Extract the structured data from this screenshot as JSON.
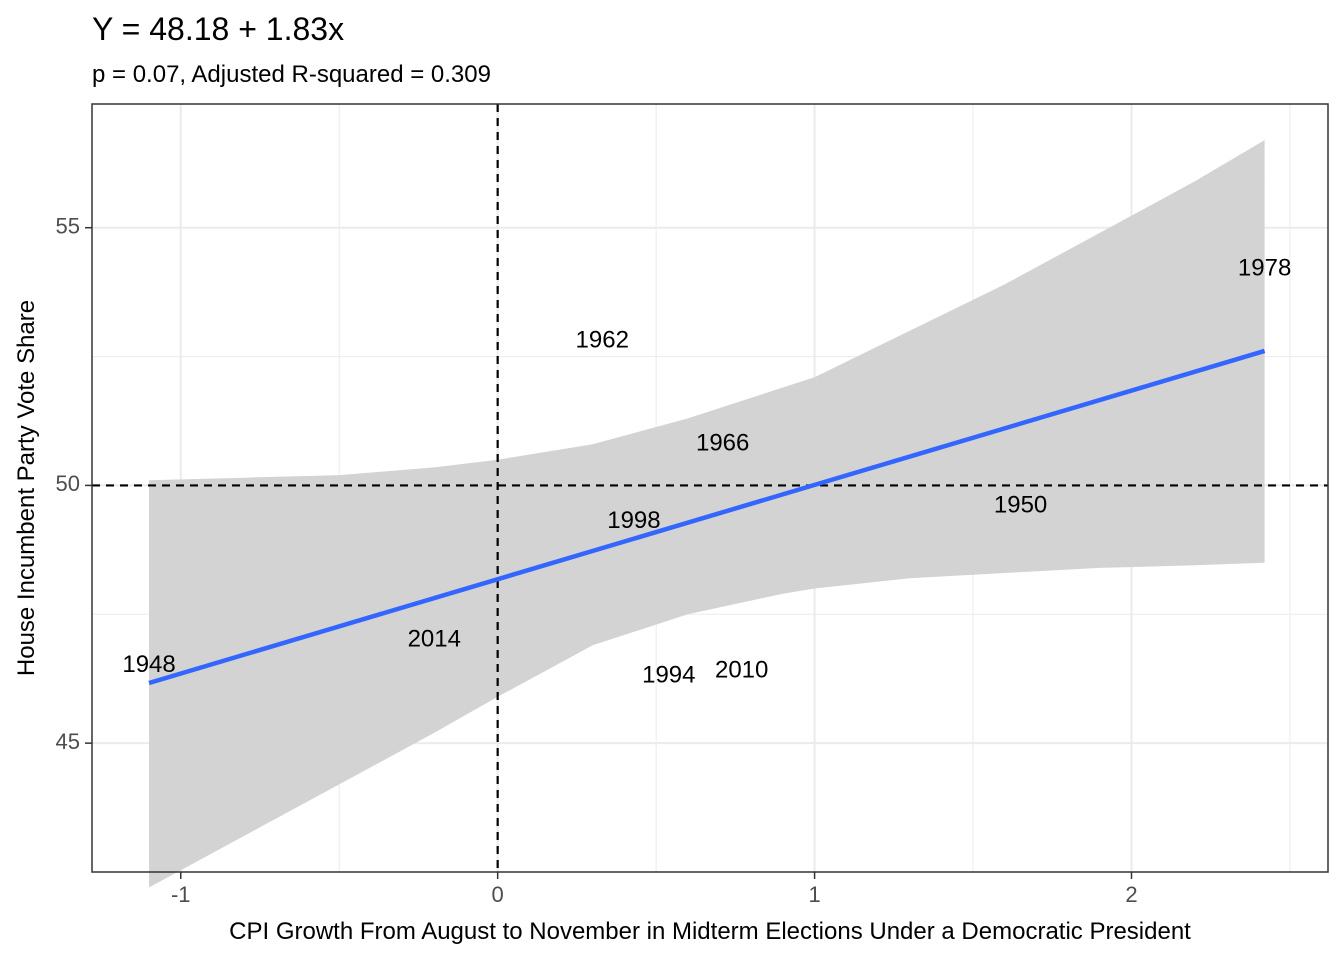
{
  "chart_data": {
    "type": "scatter",
    "title": "Y = 48.18 + 1.83x",
    "subtitle": "p = 0.07, Adjusted R-squared = 0.309",
    "xlabel": "CPI Growth From August to November in Midterm Elections Under a Democratic President",
    "ylabel": "House Incumbent Party Vote Share",
    "xlim": [
      -1.28,
      2.62
    ],
    "ylim": [
      42.5,
      57.4
    ],
    "x_ticks": [
      -1,
      0,
      1,
      2
    ],
    "x_tick_labels": [
      "-1",
      "0",
      "1",
      "2"
    ],
    "y_ticks": [
      45,
      50,
      55
    ],
    "y_tick_labels": [
      "45",
      "50",
      "55"
    ],
    "grid": true,
    "legend": "none",
    "points": [
      {
        "label": "1948",
        "x": -1.1,
        "y": 46.5
      },
      {
        "label": "1950",
        "x": 1.65,
        "y": 49.6
      },
      {
        "label": "1962",
        "x": 0.33,
        "y": 52.8
      },
      {
        "label": "1966",
        "x": 0.71,
        "y": 50.8
      },
      {
        "label": "1978",
        "x": 2.42,
        "y": 54.2
      },
      {
        "label": "1994",
        "x": 0.54,
        "y": 46.3
      },
      {
        "label": "1998",
        "x": 0.43,
        "y": 49.3
      },
      {
        "label": "2010",
        "x": 0.77,
        "y": 46.4
      },
      {
        "label": "2014",
        "x": -0.2,
        "y": 47.0
      }
    ],
    "fit_line": {
      "intercept": 48.18,
      "slope": 1.83,
      "x_range": [
        -1.1,
        2.42
      ],
      "color": "#3366FF"
    },
    "confidence_band": {
      "x": [
        -1.1,
        -0.8,
        -0.5,
        -0.2,
        0.0,
        0.3,
        0.6,
        0.9,
        1.0,
        1.3,
        1.6,
        1.9,
        2.2,
        2.42
      ],
      "lower": [
        42.2,
        43.2,
        44.2,
        45.2,
        45.9,
        46.9,
        47.5,
        47.9,
        48.0,
        48.2,
        48.3,
        48.4,
        48.45,
        48.5
      ],
      "upper": [
        50.1,
        50.15,
        50.2,
        50.35,
        50.5,
        50.8,
        51.3,
        51.9,
        52.1,
        53.0,
        53.9,
        54.9,
        55.9,
        56.7
      ],
      "color": "#d3d3d3"
    },
    "reference_lines": {
      "vertical_x": 0,
      "horizontal_y": 50
    }
  }
}
